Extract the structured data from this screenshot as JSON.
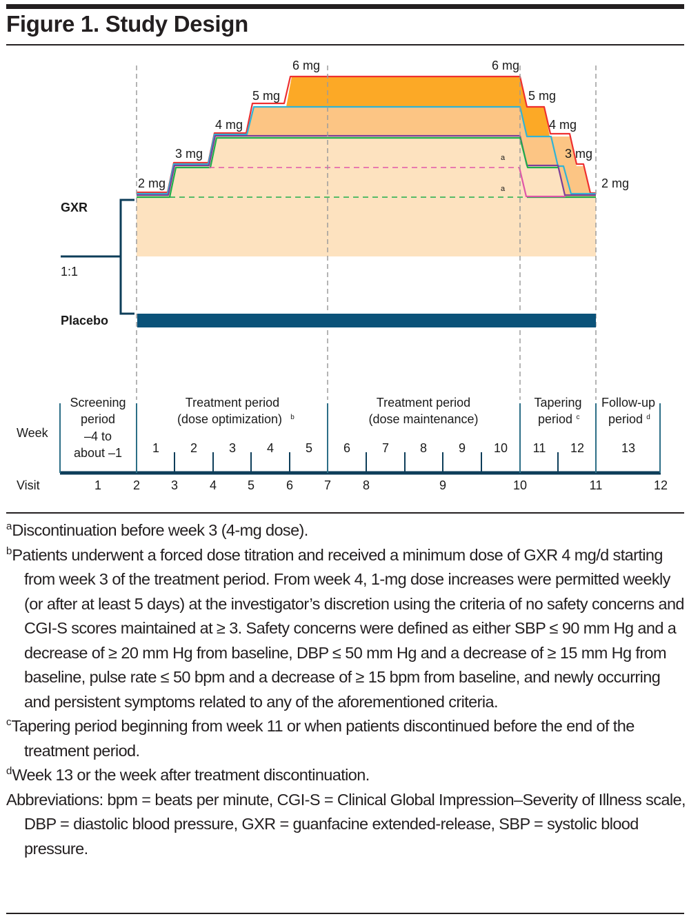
{
  "figure": {
    "title": "Figure 1. Study Design"
  },
  "arms": {
    "gxr": "GXR",
    "ratio": "1:1",
    "placebo": "Placebo"
  },
  "dose_labels": {
    "up_2": "2 mg",
    "up_3": "3 mg",
    "up_4": "4 mg",
    "up_5": "5 mg",
    "up_6_start": "6 mg",
    "up_6_end": "6 mg",
    "down_5": "5 mg",
    "down_4": "4 mg",
    "down_3": "3 mg",
    "down_2": "2 mg",
    "discontinuation_marker_1": "a",
    "discontinuation_marker_2": "a"
  },
  "colors": {
    "base_fill": "#fde2bf",
    "level5_fill": "#fcc584",
    "level6_fill": "#fca926",
    "red_line": "#ee2f2f",
    "cyan_line": "#2fb3d6",
    "purple_line": "#7b3f98",
    "green_line": "#1fae4a",
    "pink_line": "#e056a8",
    "placebo_bar": "#0b5279",
    "bracket": "#0d3d59",
    "timeline": "#0d3d59",
    "divider": "#2c6e86",
    "dashed_guide": "#9b9b9b"
  },
  "timeline": {
    "week_label": "Week",
    "visit_label": "Visit",
    "periods": [
      {
        "line1": "Screening",
        "line2": "period",
        "line3": "–4 to",
        "line4": "about –1"
      },
      {
        "line1": "Treatment period",
        "line2": "(dose optimization)",
        "sup": "b"
      },
      {
        "line1": "Treatment period",
        "line2": "(dose maintenance)"
      },
      {
        "line1": "Tapering",
        "line2": "period",
        "sup": "c"
      },
      {
        "line1": "Follow-up",
        "line2": "period",
        "sup": "d"
      }
    ],
    "weeks": [
      "1",
      "2",
      "3",
      "4",
      "5",
      "6",
      "7",
      "8",
      "9",
      "10",
      "11",
      "12",
      "13"
    ],
    "visits": [
      "1",
      "2",
      "3",
      "4",
      "5",
      "6",
      "7",
      "8",
      "9",
      "10",
      "11",
      "12"
    ]
  },
  "footnotes": {
    "a": {
      "mark": "a",
      "text": "Discontinuation before week 3 (4-mg dose)."
    },
    "b": {
      "mark": "b",
      "text": "Patients underwent a forced dose titration and received a minimum dose of GXR 4 mg/d starting from week 3 of the treatment period. From week 4, 1-mg dose increases were permitted weekly (or after at least 5 days) at the investigator’s discretion using the criteria of no safety concerns and CGI-S scores maintained at ≥ 3. Safety concerns were defined as either SBP ≤ 90 mm Hg and a decrease of ≥ 20 mm Hg from baseline, DBP ≤ 50 mm Hg and a decrease of ≥ 15 mm Hg from baseline, pulse rate ≤ 50 bpm and a decrease of ≥ 15 bpm from baseline, and newly occurring and persistent symptoms related to any of the aforementioned criteria."
    },
    "c": {
      "mark": "c",
      "text": "Tapering period beginning from week 11 or when patients discontinued before the end of the treatment period."
    },
    "d": {
      "mark": "d",
      "text": "Week 13 or the week after treatment discontinuation."
    },
    "abbreviations": "Abbreviations: bpm = beats per minute, CGI-S = Clinical Global Impression–Severity of Illness scale, DBP = diastolic blood pressure, GXR = guanfacine extended-release, SBP = systolic blood pressure."
  }
}
